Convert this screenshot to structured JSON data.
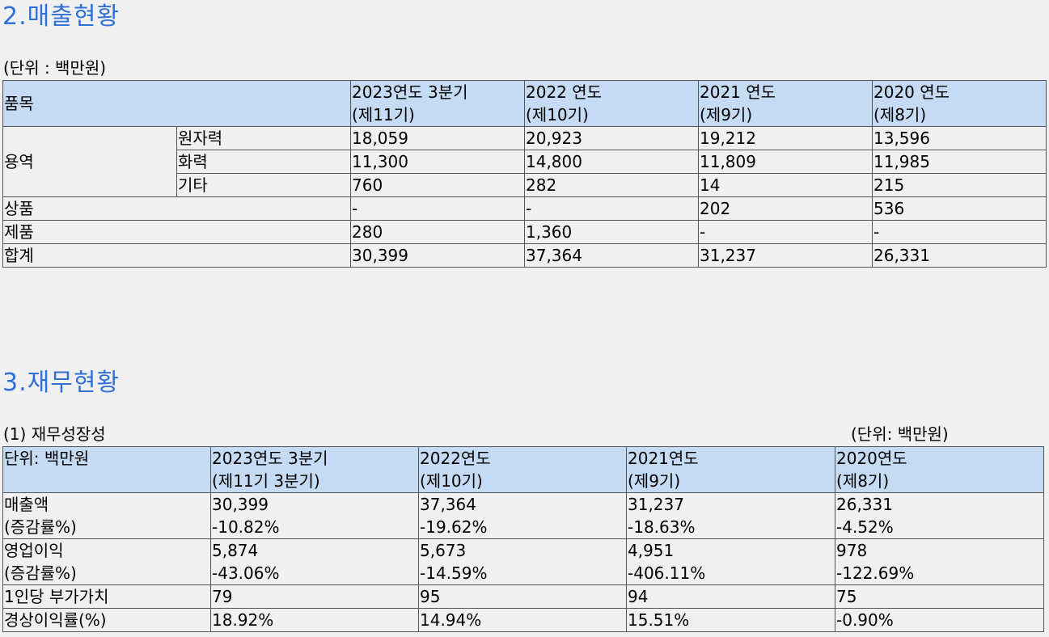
{
  "sales": {
    "title": "2.매출현황",
    "unit": "(단위 : 백만원)",
    "header": {
      "item": "품목",
      "periods": [
        [
          "2023연도 3분기",
          "(제11기)"
        ],
        [
          "2022 연도",
          "(제10기)"
        ],
        [
          "2021 연도",
          "(제9기)"
        ],
        [
          "2020 연도",
          "(제8기)"
        ]
      ]
    },
    "group_label": "용역",
    "sub_rows": [
      {
        "label": "원자력",
        "values": [
          "18,059",
          "20,923",
          "19,212",
          "13,596"
        ]
      },
      {
        "label": "화력",
        "values": [
          "11,300",
          "14,800",
          "11,809",
          "11,985"
        ]
      },
      {
        "label": "기타",
        "values": [
          "760",
          "282",
          "14",
          "215"
        ]
      }
    ],
    "rows": [
      {
        "label": "상품",
        "values": [
          "-",
          "-",
          "202",
          "536"
        ]
      },
      {
        "label": "제품",
        "values": [
          "280",
          "1,360",
          "-",
          "-"
        ]
      },
      {
        "label": "합계",
        "values": [
          "30,399",
          "37,364",
          "31,237",
          "26,331"
        ]
      }
    ]
  },
  "finance": {
    "title": "3.재무현황",
    "subtitle": "(1) 재무성장성",
    "unit": "(단위: 백만원)",
    "header": {
      "item": "단위: 백만원",
      "periods": [
        [
          "2023연도 3분기",
          "(제11기 3분기)"
        ],
        [
          "2022연도",
          "(제10기)"
        ],
        [
          "2021연도",
          "(제9기)"
        ],
        [
          "2020연도",
          "(제8기)"
        ]
      ]
    },
    "rows": [
      {
        "label": [
          "매출액",
          "(증감률%)"
        ],
        "values": [
          [
            "30,399",
            "-10.82%"
          ],
          [
            "37,364",
            "-19.62%"
          ],
          [
            "31,237",
            "-18.63%"
          ],
          [
            "26,331",
            "-4.52%"
          ]
        ]
      },
      {
        "label": [
          "영업이익",
          "(증감률%)"
        ],
        "values": [
          [
            "5,874",
            "-43.06%"
          ],
          [
            "5,673",
            "-14.59%"
          ],
          [
            "4,951",
            "-406.11%"
          ],
          [
            "978",
            "-122.69%"
          ]
        ]
      },
      {
        "label": [
          "1인당 부가가치"
        ],
        "values": [
          [
            "79"
          ],
          [
            "95"
          ],
          [
            "94"
          ],
          [
            "75"
          ]
        ]
      },
      {
        "label": [
          "경상이익률(%)"
        ],
        "values": [
          [
            "18.92%"
          ],
          [
            "14.94%"
          ],
          [
            "15.51%"
          ],
          [
            "-0.90%"
          ]
        ]
      }
    ]
  }
}
